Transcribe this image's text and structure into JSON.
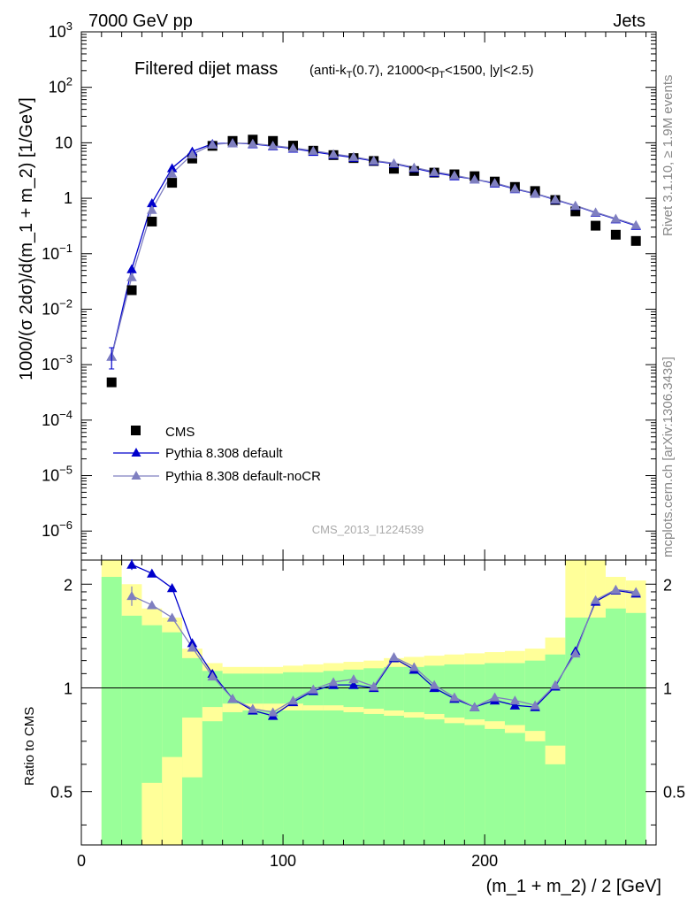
{
  "header": {
    "left": "7000 GeV pp",
    "right": "Jets"
  },
  "side_labels": {
    "rivet": "Rivet 3.1.10, ≥ 1.9M events",
    "mcplots": "mcplots.cern.ch [arXiv:1306.3436]"
  },
  "chart_data": {
    "type": "scatter",
    "title": "Filtered dijet mass",
    "subtitle_parts": [
      "(anti-k",
      "T",
      "(0.7), 21000<p",
      "T",
      "<1500, |y|<2.5)"
    ],
    "watermark": "CMS_2013_I1224539",
    "xlabel": "(m_1 + m_2) / 2 [GeV]",
    "ylabel": "1000/(σ 2dσ)/d(m_1 + m_2) [1/GeV]",
    "ratio_ylabel": "Ratio to CMS",
    "xlim": [
      0,
      285
    ],
    "ylim": [
      3e-07,
      1000
    ],
    "yscale": "log",
    "ratio_ylim": [
      0.35,
      2.35
    ],
    "ratio_yscale": "log",
    "x_ticks": [
      "0",
      "100",
      "200"
    ],
    "y_ticks": [
      {
        "base": "10",
        "exp": "3"
      },
      {
        "base": "10",
        "exp": "2"
      },
      {
        "base": "10",
        "exp": ""
      },
      {
        "base": "1",
        "exp": ""
      },
      {
        "base": "10",
        "exp": "−1"
      },
      {
        "base": "10",
        "exp": "−2"
      },
      {
        "base": "10",
        "exp": "−3"
      },
      {
        "base": "10",
        "exp": "−4"
      },
      {
        "base": "10",
        "exp": "−5"
      },
      {
        "base": "10",
        "exp": "−6"
      }
    ],
    "ratio_ticks": [
      "2",
      "1",
      "0.5"
    ],
    "legend": {
      "placement": "bottom-left",
      "entries": [
        "CMS",
        "Pythia 8.308 default",
        "Pythia 8.308 default-noCR"
      ]
    },
    "x": [
      15,
      25,
      35,
      45,
      55,
      65,
      75,
      85,
      95,
      105,
      115,
      125,
      135,
      145,
      155,
      165,
      175,
      185,
      195,
      205,
      215,
      225,
      235,
      245,
      255,
      265,
      275
    ],
    "series": [
      {
        "name": "CMS",
        "color": "#000000",
        "marker": "square",
        "values": [
          0.00048,
          0.022,
          0.38,
          1.9,
          5.2,
          8.8,
          10.8,
          11.4,
          10.8,
          8.9,
          7.2,
          6.0,
          5.3,
          4.7,
          3.4,
          3.1,
          2.9,
          2.7,
          2.5,
          2.0,
          1.6,
          1.35,
          0.93,
          0.58,
          0.32,
          0.22,
          0.17
        ]
      },
      {
        "name": "Pythia 8.308 default",
        "color": "#0000cc",
        "marker": "triangle",
        "values": [
          0.0014,
          0.053,
          0.82,
          3.5,
          7.0,
          9.6,
          9.9,
          9.5,
          8.7,
          7.9,
          6.9,
          6.1,
          5.4,
          4.7,
          4.2,
          3.5,
          2.9,
          2.5,
          2.2,
          1.85,
          1.47,
          1.21,
          0.94,
          0.73,
          0.55,
          0.42,
          0.32
        ]
      },
      {
        "name": "Pythia 8.308 default-noCR",
        "color": "#7f7fc0",
        "marker": "triangle",
        "values": [
          0.0014,
          0.038,
          0.62,
          2.8,
          6.2,
          9.3,
          9.9,
          9.7,
          8.9,
          8.1,
          7.2,
          6.3,
          5.6,
          4.8,
          4.3,
          3.6,
          3.0,
          2.6,
          2.2,
          1.9,
          1.5,
          1.22,
          0.96,
          0.74,
          0.56,
          0.43,
          0.33
        ]
      }
    ],
    "ratio": {
      "reference_line": 1,
      "bin_edges": [
        10,
        20,
        30,
        40,
        50,
        60,
        70,
        80,
        90,
        100,
        110,
        120,
        130,
        140,
        150,
        160,
        170,
        180,
        190,
        200,
        210,
        220,
        230,
        240,
        250,
        260,
        270,
        280
      ],
      "band_inner": {
        "color": "#99ff99",
        "lo": [
          0.35,
          0.35,
          0.35,
          0.35,
          0.35,
          0.35,
          0.35,
          0.35,
          0.35,
          0.35,
          0.35,
          0.35,
          0.35,
          0.35,
          0.35,
          0.35,
          0.35,
          0.35,
          0.35,
          0.35,
          0.35,
          0.35,
          0.35,
          0.35,
          0.35,
          0.35,
          0.35
        ],
        "hi": [
          2.1,
          1.62,
          1.52,
          1.45,
          1.22,
          1.12,
          1.1,
          1.1,
          1.1,
          1.11,
          1.11,
          1.12,
          1.13,
          1.14,
          1.15,
          1.15,
          1.16,
          1.17,
          1.17,
          1.18,
          1.18,
          1.2,
          1.25,
          1.6,
          1.6,
          1.7,
          1.65
        ]
      },
      "band_outer": {
        "color": "#ffff99",
        "lo": [
          0.35,
          0.35,
          0.35,
          0.35,
          0.35,
          0.35,
          0.35,
          0.35,
          0.35,
          0.35,
          0.35,
          0.35,
          0.35,
          0.35,
          0.35,
          0.35,
          0.35,
          0.35,
          0.35,
          0.35,
          0.35,
          0.35,
          0.35,
          0.35,
          0.35,
          0.35,
          0.35
        ],
        "hi": [
          2.35,
          2.0,
          1.7,
          1.6,
          1.3,
          1.18,
          1.15,
          1.15,
          1.15,
          1.16,
          1.17,
          1.18,
          1.19,
          1.2,
          1.22,
          1.23,
          1.24,
          1.25,
          1.26,
          1.27,
          1.28,
          1.3,
          1.4,
          2.35,
          2.35,
          2.1,
          2.05
        ]
      },
      "band_outer_lower": {
        "color": "#ffff99",
        "lo": [
          0.35,
          0.35,
          0.35,
          0.35,
          0.35,
          0.35,
          0.35,
          0.35,
          0.35,
          0.35,
          0.35,
          0.35,
          0.35,
          0.35,
          0.35,
          0.35,
          0.35,
          0.35,
          0.35,
          0.35,
          0.35,
          0.35,
          0.35,
          0.35,
          0.35,
          0.35,
          0.35
        ],
        "hi": [
          0.35,
          0.35,
          0.53,
          0.63,
          0.82,
          0.88,
          0.9,
          0.9,
          0.9,
          0.9,
          0.89,
          0.89,
          0.88,
          0.87,
          0.86,
          0.85,
          0.84,
          0.82,
          0.81,
          0.8,
          0.78,
          0.75,
          0.68,
          0.35,
          0.35,
          0.35,
          0.35
        ]
      },
      "band_inner_lower": {
        "color": "#99ff99",
        "lo": [
          0.35,
          0.35,
          0.35,
          0.35,
          0.35,
          0.35,
          0.35,
          0.35,
          0.35,
          0.35,
          0.35,
          0.35,
          0.35,
          0.35,
          0.35,
          0.35,
          0.35,
          0.35,
          0.35,
          0.35,
          0.35,
          0.35,
          0.35,
          0.35,
          0.35,
          0.35,
          0.35
        ],
        "hi": [
          0.35,
          0.35,
          0.35,
          0.35,
          0.55,
          0.8,
          0.85,
          0.86,
          0.86,
          0.86,
          0.86,
          0.86,
          0.85,
          0.84,
          0.83,
          0.82,
          0.81,
          0.79,
          0.78,
          0.76,
          0.74,
          0.7,
          0.6,
          0.35,
          0.35,
          0.35,
          0.35
        ]
      },
      "series": [
        {
          "name": "Pythia 8.308 default",
          "color": "#0000cc",
          "values": [
            null,
            2.28,
            2.15,
            1.95,
            1.35,
            1.1,
            0.93,
            0.86,
            0.83,
            0.91,
            0.98,
            1.02,
            1.02,
            1.0,
            1.22,
            1.13,
            1.0,
            0.93,
            0.88,
            0.92,
            0.89,
            0.88,
            1.01,
            1.28,
            1.78,
            1.92,
            1.88
          ],
          "error_first": 0.08
        },
        {
          "name": "Pythia 8.308 default-noCR",
          "color": "#7f7fc0",
          "values": [
            null,
            1.85,
            1.74,
            1.6,
            1.31,
            1.08,
            0.93,
            0.87,
            0.85,
            0.92,
            0.99,
            1.04,
            1.06,
            1.01,
            1.23,
            1.15,
            1.02,
            0.94,
            0.88,
            0.94,
            0.92,
            0.89,
            1.02,
            1.26,
            1.8,
            1.93,
            1.9
          ],
          "error_first": 0.12
        }
      ]
    }
  }
}
